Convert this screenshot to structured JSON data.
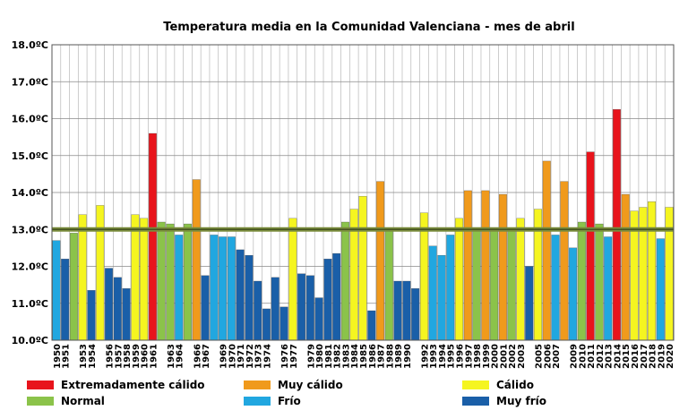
{
  "chart_data": {
    "type": "bar",
    "title": "Temperatura media en la Comunidad Valenciana - mes de abril",
    "xlabel": "",
    "ylabel": "",
    "ylim": [
      10,
      18
    ],
    "yticks": [
      "10.0ºC",
      "11.0ºC",
      "12.0ºC",
      "13.0ºC",
      "14.0ºC",
      "15.0ºC",
      "16.0ºC",
      "17.0ºC",
      "18.0ºC"
    ],
    "grid": true,
    "legend_position": "bottom",
    "reference_line": 13.0,
    "categories": [
      "1950",
      "1951",
      "1952",
      "1953",
      "1954",
      "1955",
      "1956",
      "1957",
      "1958",
      "1959",
      "1960",
      "1961",
      "1962",
      "1963",
      "1964",
      "1965",
      "1966",
      "1967",
      "1968",
      "1969",
      "1970",
      "1971",
      "1972",
      "1973",
      "1974",
      "1975",
      "1976",
      "1977",
      "1978",
      "1979",
      "1980",
      "1981",
      "1982",
      "1983",
      "1984",
      "1985",
      "1986",
      "1987",
      "1988",
      "1989",
      "1990",
      "1991",
      "1992",
      "1993",
      "1994",
      "1995",
      "1996",
      "1997",
      "1998",
      "1999",
      "2000",
      "2001",
      "2002",
      "2003",
      "2004",
      "2005",
      "2006",
      "2007",
      "2008",
      "2009",
      "2010",
      "2011",
      "2012",
      "2013",
      "2014",
      "2015",
      "2016",
      "2017",
      "2018",
      "2019",
      "2020"
    ],
    "xtick_labels": [
      "1950",
      "1951",
      "1953",
      "1954",
      "1956",
      "1957",
      "1958",
      "1959",
      "1960",
      "1961",
      "1963",
      "1964",
      "1966",
      "1967",
      "1969",
      "1970",
      "1971",
      "1972",
      "1973",
      "1974",
      "1976",
      "1977",
      "1979",
      "1980",
      "1981",
      "1982",
      "1983",
      "1984",
      "1985",
      "1986",
      "1987",
      "1988",
      "1989",
      "1990",
      "1992",
      "1993",
      "1994",
      "1995",
      "1996",
      "1997",
      "1998",
      "1999",
      "2000",
      "2001",
      "2002",
      "2003",
      "2005",
      "2006",
      "2007",
      "2009",
      "2010",
      "2011",
      "2012",
      "2013",
      "2014",
      "2015",
      "2016",
      "2017",
      "2018",
      "2019",
      "2020"
    ],
    "values": [
      12.7,
      12.2,
      12.9,
      13.4,
      11.35,
      13.65,
      11.95,
      11.7,
      11.4,
      13.4,
      13.3,
      15.6,
      13.2,
      13.15,
      12.85,
      13.15,
      14.35,
      11.75,
      12.85,
      12.8,
      12.8,
      12.45,
      12.3,
      11.6,
      10.85,
      11.7,
      10.9,
      13.3,
      11.8,
      11.75,
      11.15,
      12.2,
      12.35,
      13.2,
      13.55,
      13.9,
      10.8,
      14.3,
      12.95,
      11.6,
      11.6,
      11.4,
      13.45,
      12.55,
      12.3,
      12.85,
      13.3,
      14.05,
      13.0,
      14.05,
      13.05,
      13.95,
      13.0,
      13.3,
      12.0,
      13.55,
      14.85,
      12.85,
      14.3,
      12.5,
      13.2,
      15.1,
      13.15,
      12.8,
      16.25,
      13.95,
      13.5,
      13.6,
      13.75,
      12.75,
      13.6
    ],
    "bar_categories": [
      "frio",
      "muy_frio",
      "normal",
      "calido",
      "muy_frio",
      "calido",
      "muy_frio",
      "muy_frio",
      "muy_frio",
      "calido",
      "calido",
      "extremo",
      "normal",
      "normal",
      "frio",
      "normal",
      "muy_calido",
      "muy_frio",
      "frio",
      "frio",
      "frio",
      "muy_frio",
      "muy_frio",
      "muy_frio",
      "muy_frio",
      "muy_frio",
      "muy_frio",
      "calido",
      "muy_frio",
      "muy_frio",
      "muy_frio",
      "muy_frio",
      "muy_frio",
      "normal",
      "calido",
      "calido",
      "muy_frio",
      "muy_calido",
      "normal",
      "muy_frio",
      "muy_frio",
      "muy_frio",
      "calido",
      "frio",
      "frio",
      "frio",
      "calido",
      "muy_calido",
      "normal",
      "muy_calido",
      "normal",
      "muy_calido",
      "normal",
      "calido",
      "muy_frio",
      "calido",
      "muy_calido",
      "frio",
      "muy_calido",
      "frio",
      "normal",
      "extremo",
      "normal",
      "frio",
      "extremo",
      "muy_calido",
      "calido",
      "calido",
      "calido",
      "frio",
      "calido"
    ],
    "legend": [
      {
        "key": "extremo",
        "label": "Extremadamente cálido",
        "color": "#e8141c"
      },
      {
        "key": "muy_calido",
        "label": "Muy cálido",
        "color": "#f09a1c"
      },
      {
        "key": "calido",
        "label": "Cálido",
        "color": "#f5f520"
      },
      {
        "key": "normal",
        "label": "Normal",
        "color": "#8bc34a"
      },
      {
        "key": "frio",
        "label": "Frío",
        "color": "#21a7e0"
      },
      {
        "key": "muy_frio",
        "label": "Muy frío",
        "color": "#1a5fa8"
      }
    ]
  }
}
